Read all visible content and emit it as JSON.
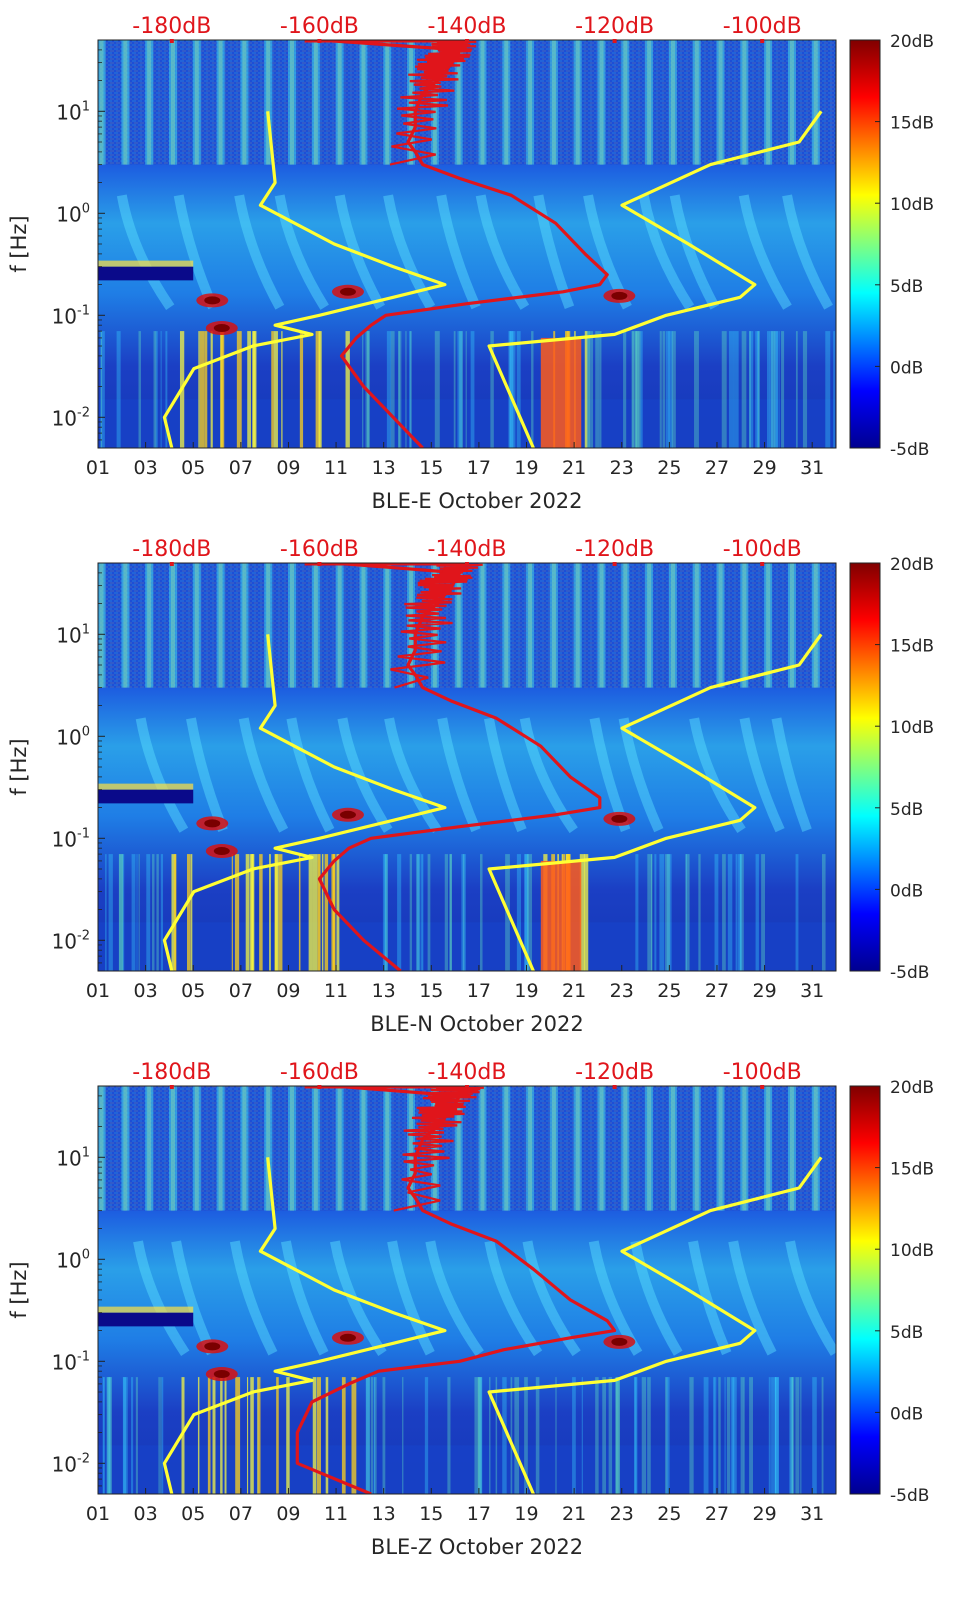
{
  "figure": {
    "description": "Monthly spectrograms of BLE station components with noise-model overlays"
  },
  "colorbar": {
    "range_db": [
      -5,
      20
    ],
    "labels": [
      "20dB",
      "15dB",
      "10dB",
      "5dB",
      "0dB",
      "-5dB"
    ],
    "colormap": "jet",
    "colors": [
      "#00008f",
      "#0000ff",
      "#00ffff",
      "#ffff00",
      "#ff0000",
      "#800000"
    ]
  },
  "top_axis": {
    "labels": [
      "-180dB",
      "-160dB",
      "-140dB",
      "-120dB",
      "-100dB"
    ],
    "values_db": [
      -180,
      -160,
      -140,
      -120,
      -100
    ],
    "color": "#e0151b"
  },
  "chart_data": [
    {
      "type": "heatmap",
      "title": "",
      "xlabel": "BLE-E October 2022",
      "ylabel": "f [Hz]",
      "x_range_days": [
        1,
        32
      ],
      "x_ticks": [
        "01",
        "03",
        "05",
        "07",
        "09",
        "11",
        "13",
        "15",
        "17",
        "19",
        "21",
        "23",
        "25",
        "27",
        "29",
        "31"
      ],
      "y_scale": "log",
      "y_range_hz": [
        0.005,
        50
      ],
      "y_ticks": [
        "10^{-2}",
        "10^{-1}",
        "10^{0}",
        "10^{1}"
      ],
      "series": [
        {
          "name": "low-noise model (yellow, dB)",
          "color": "#ffff33",
          "points": [
            [
              0.005,
              -180
            ],
            [
              0.01,
              -181
            ],
            [
              0.03,
              -177
            ],
            [
              0.05,
              -169
            ],
            [
              0.065,
              -161
            ],
            [
              0.08,
              -166
            ],
            [
              0.1,
              -160
            ],
            [
              0.15,
              -150
            ],
            [
              0.2,
              -143
            ],
            [
              0.3,
              -150
            ],
            [
              0.5,
              -158
            ],
            [
              1.2,
              -168
            ],
            [
              2,
              -166
            ],
            [
              10,
              -167
            ]
          ]
        },
        {
          "name": "high-noise model (yellow, dB)",
          "color": "#ffff33",
          "points": [
            [
              0.005,
              -131
            ],
            [
              0.05,
              -137
            ],
            [
              0.065,
              -120
            ],
            [
              0.1,
              -113
            ],
            [
              0.15,
              -103
            ],
            [
              0.2,
              -101
            ],
            [
              0.5,
              -110
            ],
            [
              1.2,
              -119
            ],
            [
              3,
              -107
            ],
            [
              5,
              -95
            ],
            [
              10,
              -92
            ]
          ]
        },
        {
          "name": "median PSD (red, dB)",
          "color": "#e0151b",
          "points": [
            [
              0.005,
              -146
            ],
            [
              0.01,
              -150
            ],
            [
              0.02,
              -154
            ],
            [
              0.04,
              -157
            ],
            [
              0.06,
              -155
            ],
            [
              0.08,
              -153
            ],
            [
              0.1,
              -151
            ],
            [
              0.13,
              -140
            ],
            [
              0.17,
              -127
            ],
            [
              0.2,
              -122
            ],
            [
              0.25,
              -121
            ],
            [
              0.4,
              -124
            ],
            [
              0.8,
              -128
            ],
            [
              1.5,
              -134
            ],
            [
              2.2,
              -141
            ],
            [
              3,
              -146
            ],
            [
              4,
              -147
            ],
            [
              5,
              -148
            ],
            [
              7,
              -147
            ],
            [
              10,
              -147
            ],
            [
              15,
              -146
            ],
            [
              20,
              -144
            ],
            [
              30,
              -142
            ],
            [
              40,
              -141
            ],
            [
              50,
              -160
            ]
          ]
        }
      ]
    },
    {
      "type": "heatmap",
      "title": "",
      "xlabel": "BLE-N October 2022",
      "ylabel": "f [Hz]",
      "x_range_days": [
        1,
        32
      ],
      "x_ticks": [
        "01",
        "03",
        "05",
        "07",
        "09",
        "11",
        "13",
        "15",
        "17",
        "19",
        "21",
        "23",
        "25",
        "27",
        "29",
        "31"
      ],
      "y_scale": "log",
      "y_range_hz": [
        0.005,
        50
      ],
      "y_ticks": [
        "10^{-2}",
        "10^{-1}",
        "10^{0}",
        "10^{1}"
      ],
      "series": [
        {
          "name": "low-noise model (yellow, dB)",
          "color": "#ffff33",
          "points": [
            [
              0.005,
              -180
            ],
            [
              0.01,
              -181
            ],
            [
              0.03,
              -177
            ],
            [
              0.05,
              -169
            ],
            [
              0.065,
              -161
            ],
            [
              0.08,
              -166
            ],
            [
              0.1,
              -160
            ],
            [
              0.15,
              -150
            ],
            [
              0.2,
              -143
            ],
            [
              0.3,
              -150
            ],
            [
              0.5,
              -158
            ],
            [
              1.2,
              -168
            ],
            [
              2,
              -166
            ],
            [
              10,
              -167
            ]
          ]
        },
        {
          "name": "high-noise model (yellow, dB)",
          "color": "#ffff33",
          "points": [
            [
              0.005,
              -131
            ],
            [
              0.05,
              -137
            ],
            [
              0.065,
              -120
            ],
            [
              0.1,
              -113
            ],
            [
              0.15,
              -103
            ],
            [
              0.2,
              -101
            ],
            [
              0.5,
              -110
            ],
            [
              1.2,
              -119
            ],
            [
              3,
              -107
            ],
            [
              5,
              -95
            ],
            [
              10,
              -92
            ]
          ]
        },
        {
          "name": "median PSD (red, dB)",
          "color": "#e0151b",
          "points": [
            [
              0.005,
              -149
            ],
            [
              0.01,
              -154
            ],
            [
              0.02,
              -158
            ],
            [
              0.04,
              -160
            ],
            [
              0.06,
              -158
            ],
            [
              0.08,
              -156
            ],
            [
              0.1,
              -153
            ],
            [
              0.13,
              -141
            ],
            [
              0.17,
              -128
            ],
            [
              0.2,
              -122
            ],
            [
              0.25,
              -122
            ],
            [
              0.4,
              -126
            ],
            [
              0.8,
              -130
            ],
            [
              1.5,
              -136
            ],
            [
              2.2,
              -142
            ],
            [
              3,
              -146
            ],
            [
              4,
              -147
            ],
            [
              5,
              -148
            ],
            [
              7,
              -147
            ],
            [
              10,
              -147
            ],
            [
              15,
              -146
            ],
            [
              20,
              -144
            ],
            [
              30,
              -142
            ],
            [
              40,
              -141
            ],
            [
              50,
              -158
            ]
          ]
        }
      ]
    },
    {
      "type": "heatmap",
      "title": "",
      "xlabel": "BLE-Z October 2022",
      "ylabel": "f [Hz]",
      "x_range_days": [
        1,
        32
      ],
      "x_ticks": [
        "01",
        "03",
        "05",
        "07",
        "09",
        "11",
        "13",
        "15",
        "17",
        "19",
        "21",
        "23",
        "25",
        "27",
        "29",
        "31"
      ],
      "y_scale": "log",
      "y_range_hz": [
        0.005,
        50
      ],
      "y_ticks": [
        "10^{-2}",
        "10^{-1}",
        "10^{0}",
        "10^{1}"
      ],
      "series": [
        {
          "name": "low-noise model (yellow, dB)",
          "color": "#ffff33",
          "points": [
            [
              0.005,
              -180
            ],
            [
              0.01,
              -181
            ],
            [
              0.03,
              -177
            ],
            [
              0.05,
              -169
            ],
            [
              0.065,
              -161
            ],
            [
              0.08,
              -166
            ],
            [
              0.1,
              -160
            ],
            [
              0.15,
              -150
            ],
            [
              0.2,
              -143
            ],
            [
              0.3,
              -150
            ],
            [
              0.5,
              -158
            ],
            [
              1.2,
              -168
            ],
            [
              2,
              -166
            ],
            [
              10,
              -167
            ]
          ]
        },
        {
          "name": "high-noise model (yellow, dB)",
          "color": "#ffff33",
          "points": [
            [
              0.005,
              -131
            ],
            [
              0.05,
              -137
            ],
            [
              0.065,
              -120
            ],
            [
              0.1,
              -113
            ],
            [
              0.15,
              -103
            ],
            [
              0.2,
              -101
            ],
            [
              0.5,
              -110
            ],
            [
              1.2,
              -119
            ],
            [
              3,
              -107
            ],
            [
              5,
              -95
            ],
            [
              10,
              -92
            ]
          ]
        },
        {
          "name": "median PSD (red, dB)",
          "color": "#e0151b",
          "points": [
            [
              0.005,
              -153
            ],
            [
              0.01,
              -163
            ],
            [
              0.02,
              -163
            ],
            [
              0.04,
              -161
            ],
            [
              0.06,
              -156
            ],
            [
              0.08,
              -152
            ],
            [
              0.1,
              -141
            ],
            [
              0.13,
              -135
            ],
            [
              0.17,
              -126
            ],
            [
              0.2,
              -120
            ],
            [
              0.25,
              -121
            ],
            [
              0.4,
              -126
            ],
            [
              0.8,
              -131
            ],
            [
              1.5,
              -136
            ],
            [
              2.2,
              -142
            ],
            [
              3,
              -146
            ],
            [
              4,
              -147
            ],
            [
              5,
              -148
            ],
            [
              7,
              -147
            ],
            [
              10,
              -147
            ],
            [
              15,
              -146
            ],
            [
              20,
              -144
            ],
            [
              30,
              -142
            ],
            [
              40,
              -141
            ],
            [
              50,
              -158
            ]
          ]
        }
      ]
    }
  ]
}
